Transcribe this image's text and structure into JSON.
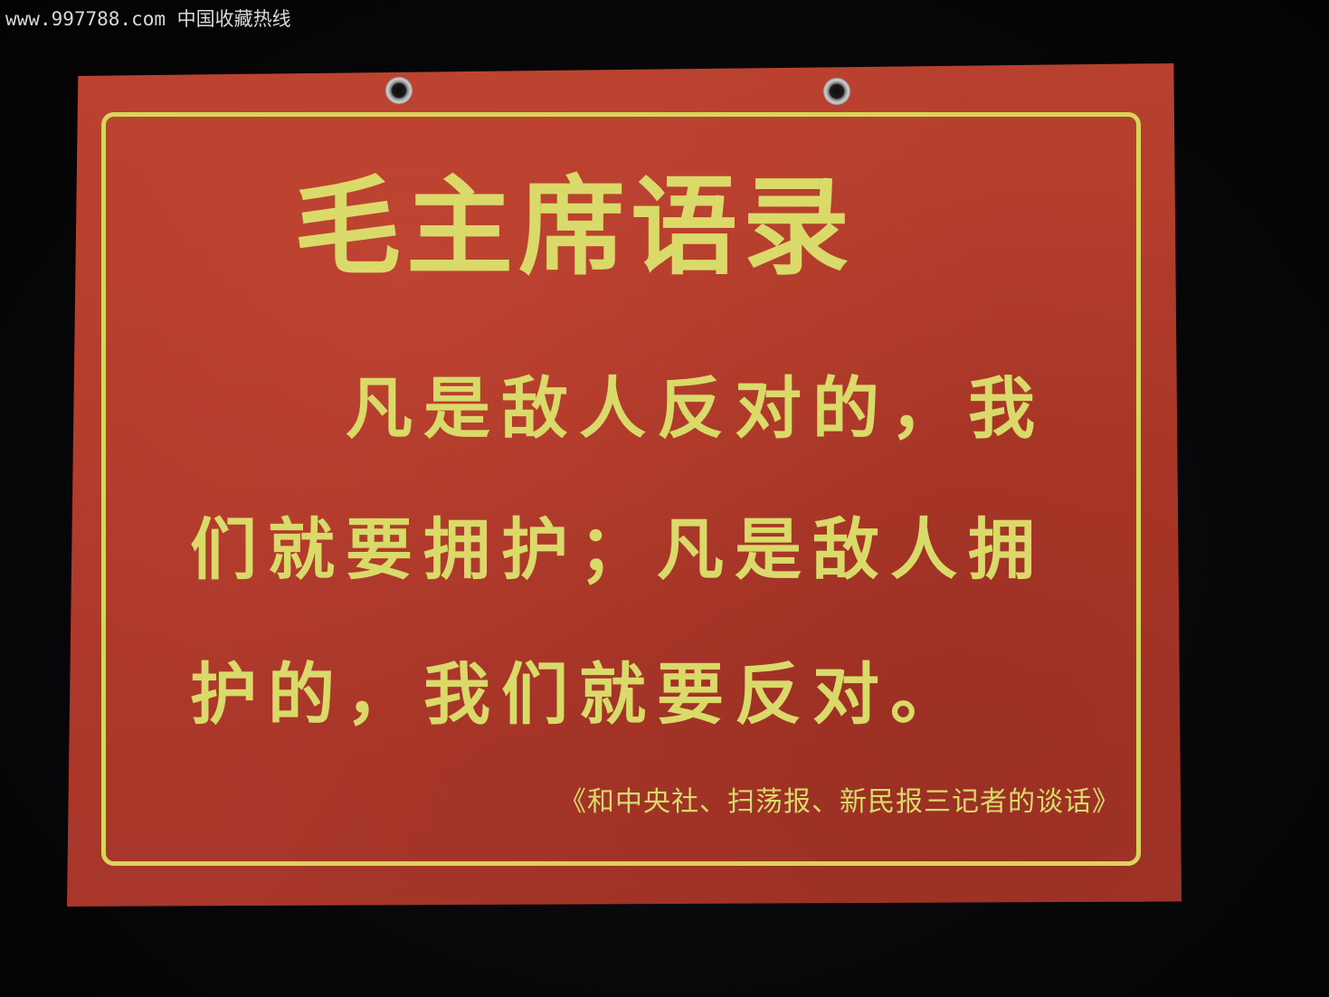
{
  "watermark": "www.997788.com 中国收藏热线",
  "sign": {
    "title": "毛主席语录",
    "quote_lines": [
      "凡是敌人反对的，我",
      "们就要拥护；凡是敌人拥",
      "护的，我们就要反对。"
    ],
    "source": "《和中央社、扫荡报、新民报三记者的谈话》"
  },
  "colors": {
    "background": "#060608",
    "sign_red": "#b03a2a",
    "text_yellow": "#d9da6a"
  }
}
